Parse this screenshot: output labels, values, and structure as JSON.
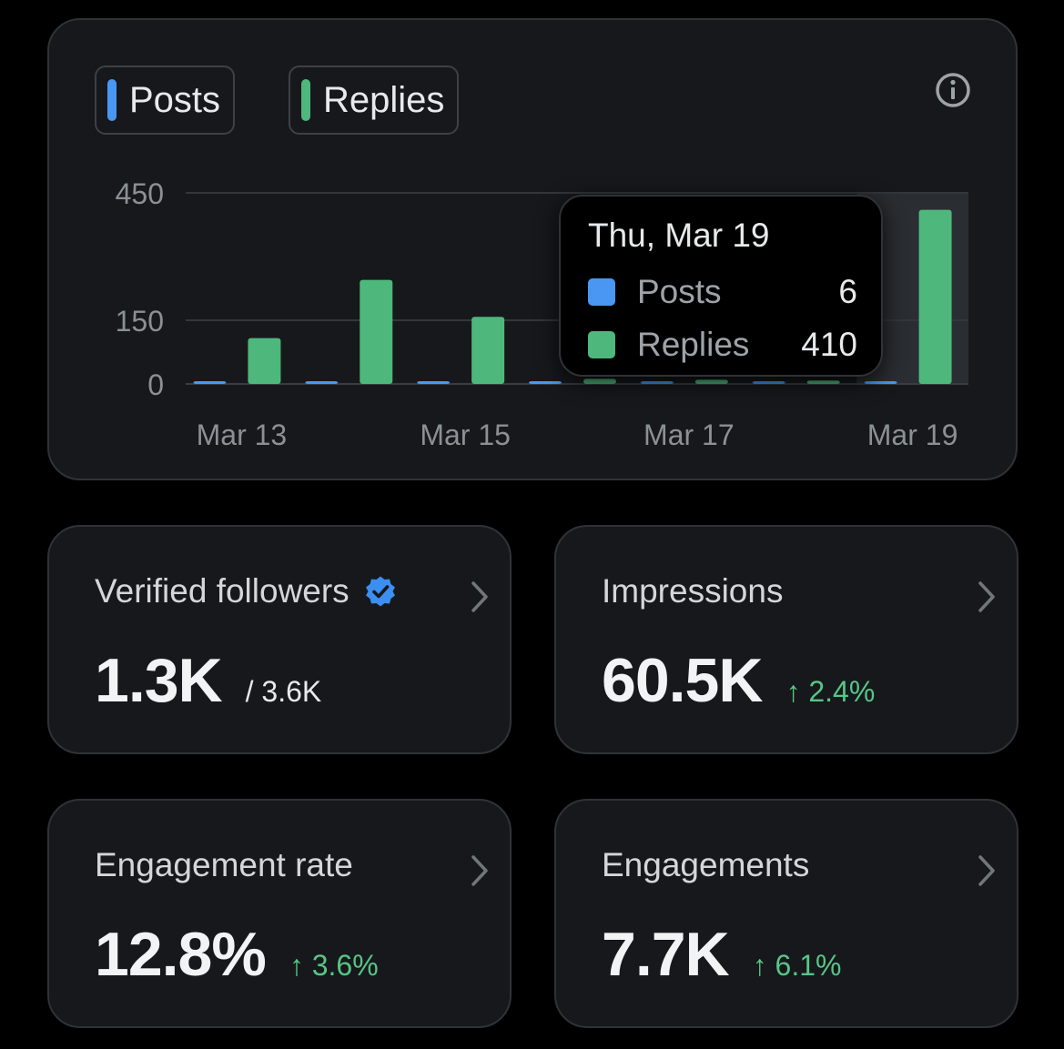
{
  "legend": {
    "posts_label": "Posts",
    "replies_label": "Replies"
  },
  "colors": {
    "posts": "#4a97f3",
    "replies": "#4eb77c",
    "positive_change": "#58c586",
    "verified_badge": "#3b8ff0"
  },
  "icons": [
    "info-icon",
    "chevron-right-icon",
    "verified-badge-icon",
    "arrow-up-icon"
  ],
  "chart_data": {
    "type": "bar",
    "categories": [
      "Mar 13",
      "Mar 14",
      "Mar 15",
      "Mar 16",
      "Mar 17",
      "Mar 18",
      "Mar 19"
    ],
    "x_tick_labels": [
      "Mar 13",
      "Mar 15",
      "Mar 17",
      "Mar 19"
    ],
    "series": [
      {
        "name": "Posts",
        "values": [
          3,
          5,
          4,
          3,
          4,
          2,
          6
        ]
      },
      {
        "name": "Replies",
        "values": [
          108,
          245,
          158,
          12,
          10,
          8,
          410
        ]
      }
    ],
    "y_ticks": [
      "0",
      "150",
      "450"
    ],
    "ylim": [
      0,
      450
    ],
    "highlighted_category": "Mar 19",
    "title": "",
    "xlabel": "",
    "ylabel": ""
  },
  "tooltip": {
    "date": "Thu, Mar 19",
    "posts_label": "Posts",
    "posts_value": "6",
    "replies_label": "Replies",
    "replies_value": "410"
  },
  "cards": {
    "verified": {
      "title": "Verified followers",
      "value": "1.3K",
      "sub": "/ 3.6K"
    },
    "impressions": {
      "title": "Impressions",
      "value": "60.5K",
      "change": "↑ 2.4%"
    },
    "engagement_rate": {
      "title": "Engagement rate",
      "value": "12.8%",
      "change": "↑ 3.6%"
    },
    "engagements": {
      "title": "Engagements",
      "value": "7.7K",
      "change": "↑ 6.1%"
    }
  }
}
